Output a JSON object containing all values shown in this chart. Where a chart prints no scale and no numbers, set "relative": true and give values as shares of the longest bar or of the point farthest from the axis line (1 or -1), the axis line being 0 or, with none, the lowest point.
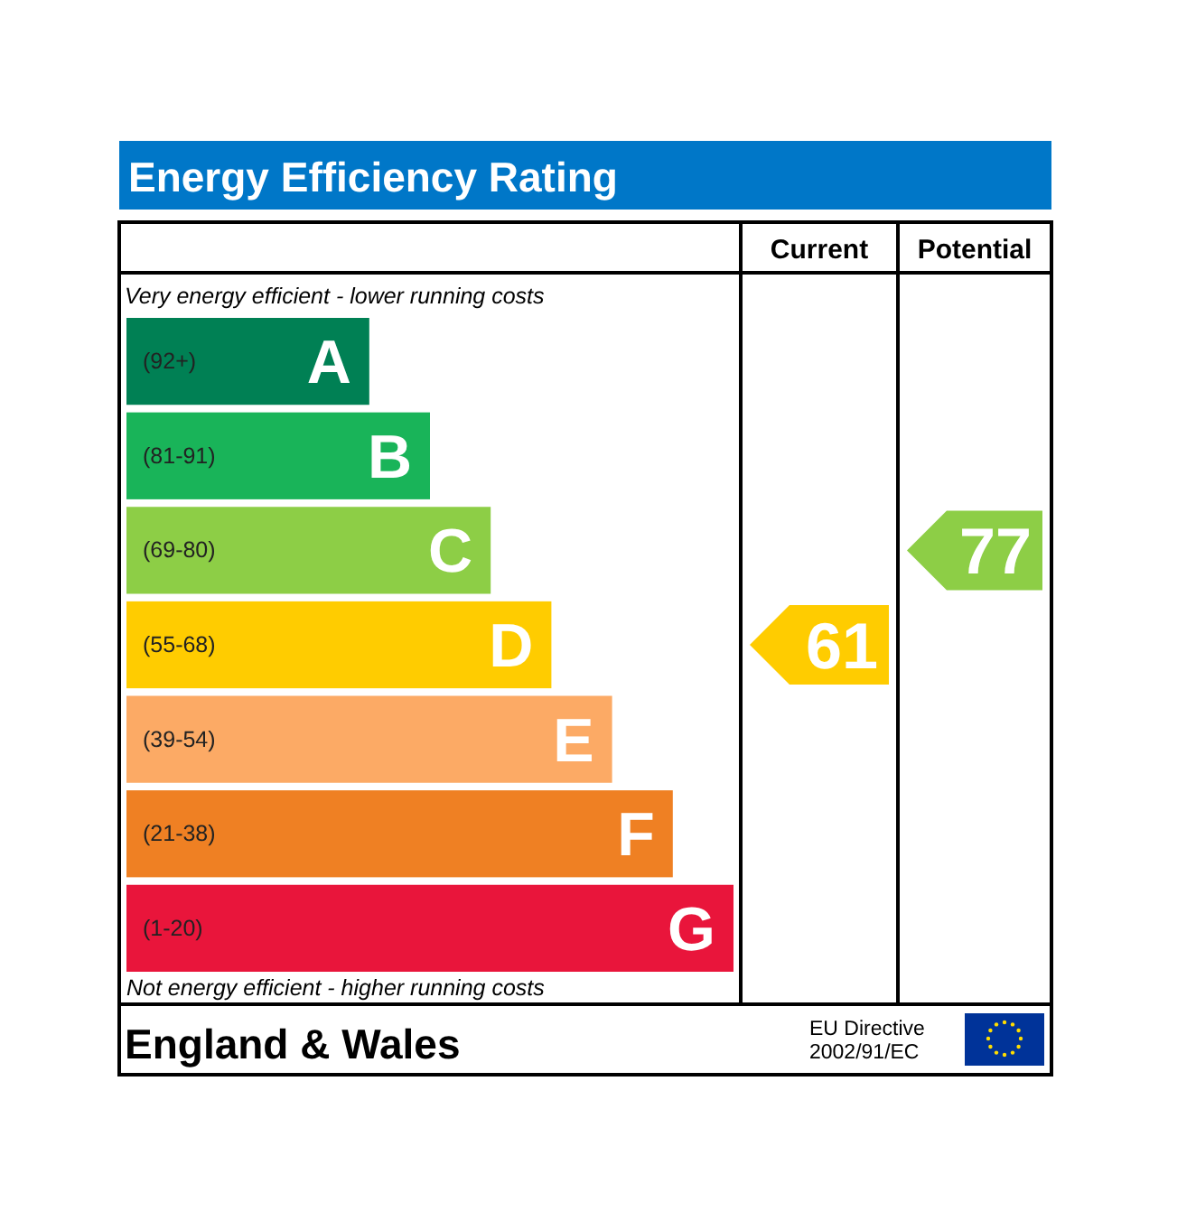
{
  "chart_data": {
    "type": "bar",
    "orientation": "horizontal",
    "relative": true,
    "title": "Energy Efficiency Rating",
    "categories": [
      "A",
      "B",
      "C",
      "D",
      "E",
      "F",
      "G"
    ],
    "values": [
      0.4,
      0.5,
      0.6,
      0.7,
      0.8,
      0.9,
      1
    ],
    "colors": [
      "#008054",
      "#19b459",
      "#8dce46",
      "#ffcc00",
      "#fcaa65",
      "#ef8023",
      "#e9153b"
    ],
    "annotations": [
      "Very energy efficient - lower running costs",
      "Not energy efficient - higher running costs",
      "Current",
      "Potential",
      "England & Wales",
      "EU Directive\n2002/91/EC",
      "61",
      "77",
      "(92+)",
      "(81-91)",
      "(69-80)",
      "(55-68)",
      "(39-54)",
      "(21-38)",
      "(1-20)"
    ]
  }
}
